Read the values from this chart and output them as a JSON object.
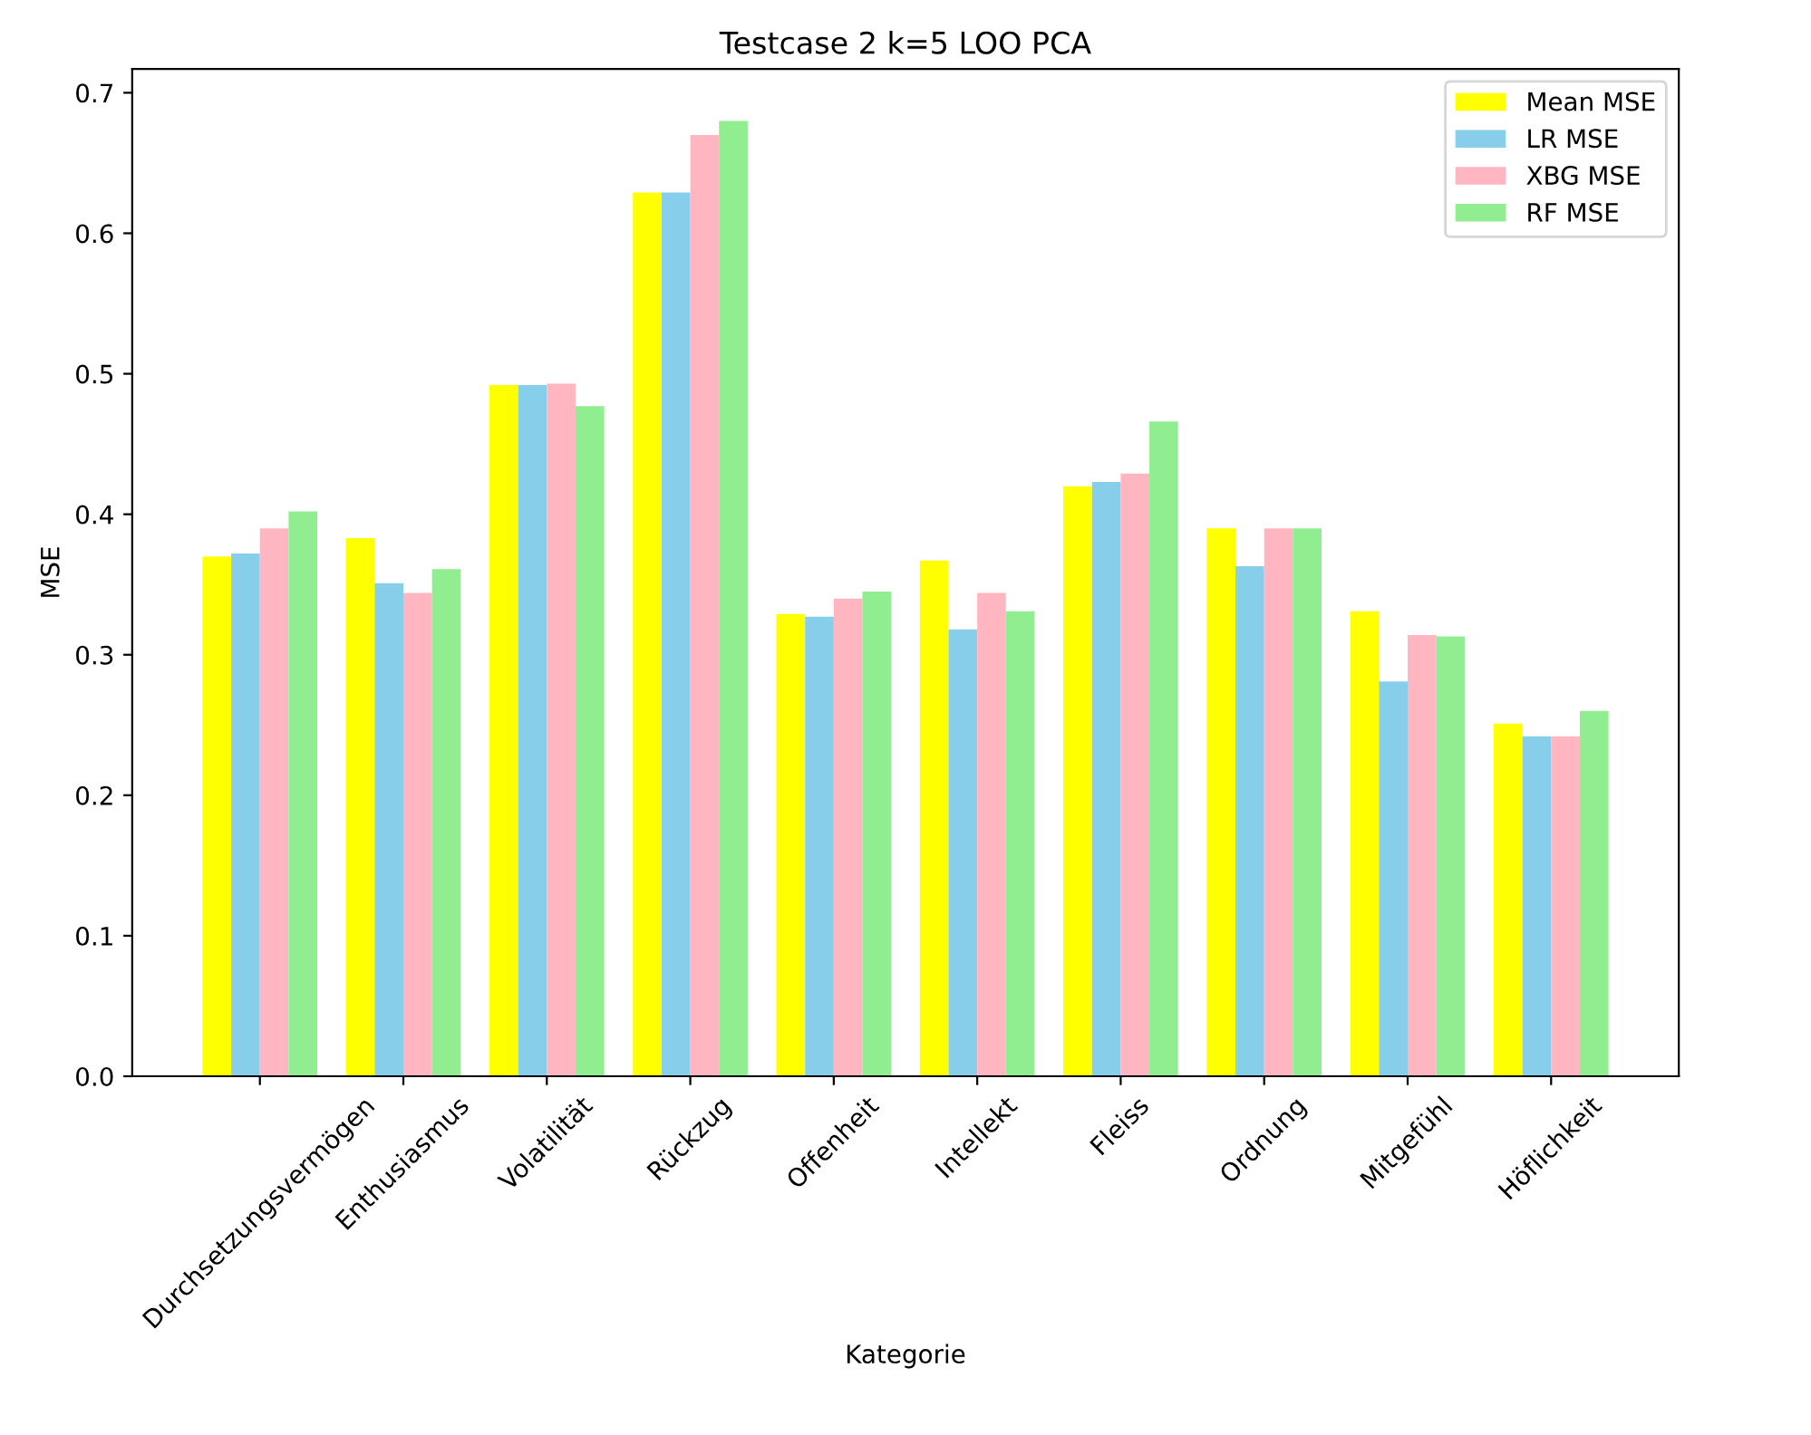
{
  "chart_data": {
    "type": "bar",
    "title": "Testcase 2 k=5 LOO PCA",
    "xlabel": "Kategorie",
    "ylabel": "MSE",
    "categories": [
      "Durchsetzungsvermögen",
      "Enthusiasmus",
      "Volatilität",
      "Rückzug",
      "Offenheit",
      "Intellekt",
      "Fleiss",
      "Ordnung",
      "Mitgefühl",
      "Höflichkeit"
    ],
    "series": [
      {
        "name": "Mean MSE",
        "color": "#ffff00",
        "values": [
          0.37,
          0.383,
          0.492,
          0.629,
          0.329,
          0.367,
          0.42,
          0.39,
          0.331,
          0.251
        ]
      },
      {
        "name": "LR MSE",
        "color": "#87ceeb",
        "values": [
          0.372,
          0.351,
          0.492,
          0.629,
          0.327,
          0.318,
          0.423,
          0.363,
          0.281,
          0.242
        ]
      },
      {
        "name": "XBG MSE",
        "color": "#ffb6c1",
        "values": [
          0.39,
          0.344,
          0.493,
          0.67,
          0.34,
          0.344,
          0.429,
          0.39,
          0.314,
          0.242
        ]
      },
      {
        "name": "RF MSE",
        "color": "#90ee90",
        "values": [
          0.402,
          0.361,
          0.477,
          0.68,
          0.345,
          0.331,
          0.466,
          0.39,
          0.313,
          0.26
        ]
      }
    ],
    "ylim": [
      0,
      0.717
    ],
    "yticks": [
      {
        "value": 0,
        "label": "0.0"
      },
      0.1,
      0.2,
      0.3,
      0.4,
      0.5,
      0.6,
      0.7
    ],
    "legend": "top right",
    "grid": false
  }
}
